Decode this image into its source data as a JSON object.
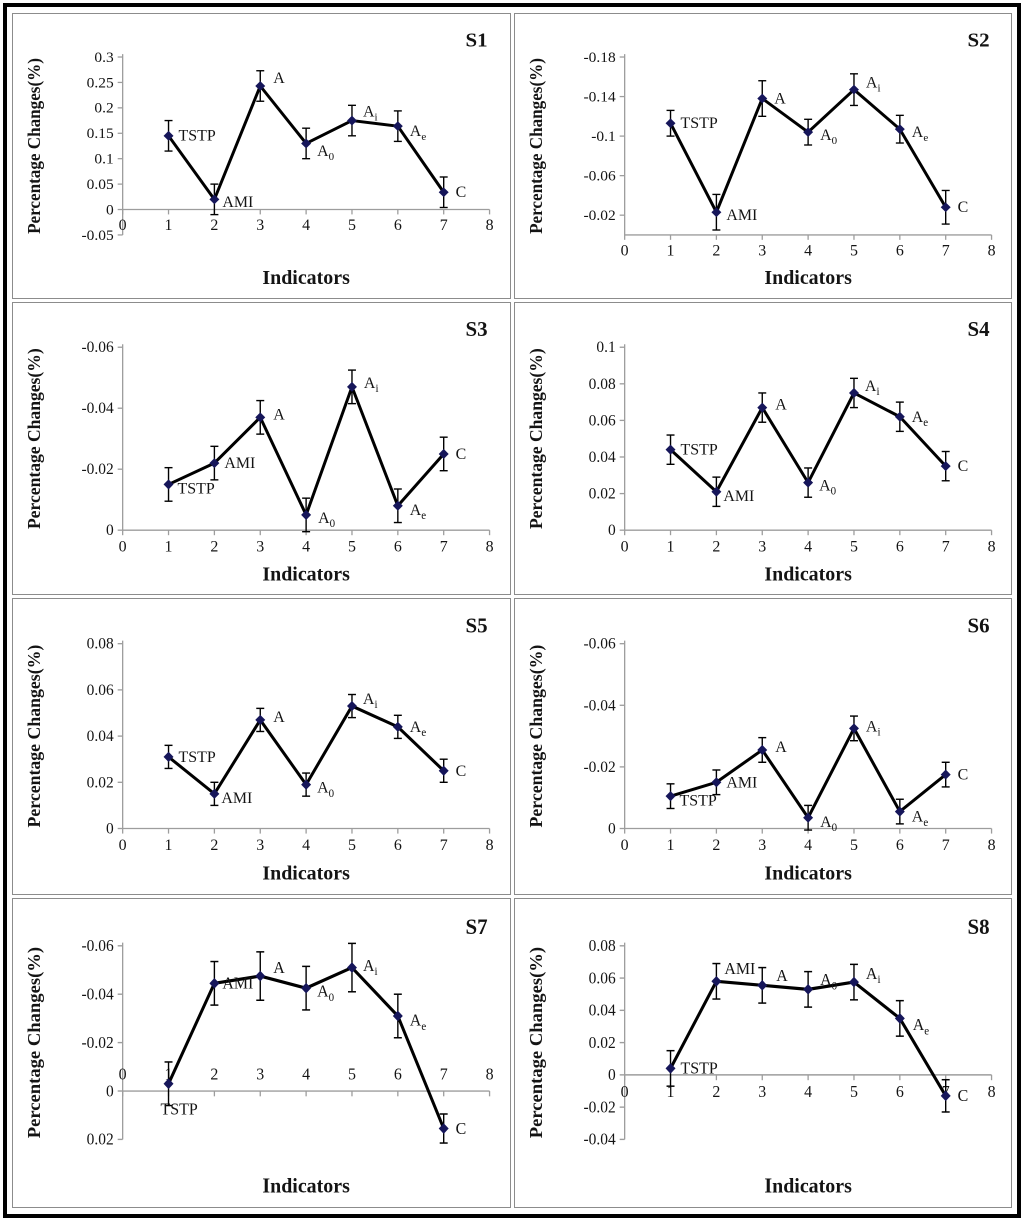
{
  "figure": {
    "ylabel": "Percentage Changes(%)",
    "xlabel": "Indicators",
    "x_tick_labels": [
      "0",
      "1",
      "2",
      "3",
      "4",
      "5",
      "6",
      "7",
      "8"
    ],
    "point_labels": [
      "TSTP",
      "AMI",
      "A",
      "A_0",
      "A_i",
      "A_e",
      "C"
    ],
    "colors": {
      "line": "#000000",
      "marker": "#16165a",
      "axis": "#9d9d9d",
      "text": "#141414",
      "panel_border": "#8c8c8c",
      "frame_border": "#000000"
    }
  },
  "chart_data": [
    {
      "type": "line",
      "title": "S1",
      "ylabel": "Percentage Changes(%)",
      "xlabel": "Indicators",
      "x": [
        1,
        2,
        3,
        4,
        5,
        6,
        7
      ],
      "values": [
        0.145,
        0.02,
        0.243,
        0.13,
        0.175,
        0.164,
        0.034
      ],
      "errors": [
        0.03,
        0.03,
        0.03,
        0.03,
        0.03,
        0.03,
        0.03
      ],
      "y_tick_labels": [
        "0.3",
        "0.25",
        "0.2",
        "0.15",
        "0.1",
        "0.05",
        "0",
        "-0.05"
      ],
      "ylim": [
        0.3,
        -0.05
      ],
      "x_labels_side": "below",
      "label_dx": [
        10,
        8,
        13,
        11,
        11,
        12,
        12
      ],
      "label_dy": [
        0,
        3,
        -8,
        8,
        -9,
        5,
        0
      ]
    },
    {
      "type": "line",
      "title": "S2",
      "ylabel": "Percentage Changes(%)",
      "xlabel": "Indicators",
      "x": [
        1,
        2,
        3,
        4,
        5,
        6,
        7
      ],
      "values": [
        -0.113,
        -0.023,
        -0.138,
        -0.104,
        -0.147,
        -0.107,
        -0.028
      ],
      "errors": [
        0.013,
        0.018,
        0.018,
        0.013,
        0.016,
        0.014,
        0.017
      ],
      "y_tick_labels": [
        "-0.18",
        "-0.14",
        "-0.1",
        "-0.06",
        "-0.02"
      ],
      "ylim": [
        -0.18,
        0
      ],
      "x_labels_side": "below",
      "label_dx": [
        10,
        10,
        12,
        12,
        12,
        12,
        12
      ],
      "label_dy": [
        0,
        3,
        0,
        3,
        -7,
        3,
        0
      ]
    },
    {
      "type": "line",
      "title": "S3",
      "ylabel": "Percentage Changes(%)",
      "xlabel": "Indicators",
      "x": [
        1,
        2,
        3,
        4,
        5,
        6,
        7
      ],
      "values": [
        -0.015,
        -0.022,
        -0.037,
        -0.005,
        -0.047,
        -0.008,
        -0.025
      ],
      "errors": [
        0.0055,
        0.0055,
        0.0055,
        0.0055,
        0.0055,
        0.0055,
        0.0055
      ],
      "y_tick_labels": [
        "-0.06",
        "-0.04",
        "-0.02",
        "0"
      ],
      "ylim": [
        -0.06,
        0
      ],
      "x_labels_side": "below",
      "label_dx": [
        9,
        10,
        13,
        12,
        12,
        12,
        12
      ],
      "label_dy": [
        4,
        0,
        -3,
        3,
        -4,
        4,
        0
      ]
    },
    {
      "type": "line",
      "title": "S4",
      "ylabel": "Percentage Changes(%)",
      "xlabel": "Indicators",
      "x": [
        1,
        2,
        3,
        4,
        5,
        6,
        7
      ],
      "values": [
        0.044,
        0.021,
        0.067,
        0.026,
        0.075,
        0.062,
        0.035
      ],
      "errors": [
        0.008,
        0.008,
        0.008,
        0.008,
        0.008,
        0.008,
        0.008
      ],
      "y_tick_labels": [
        "0.1",
        "0.08",
        "0.06",
        "0.04",
        "0.02",
        "0"
      ],
      "ylim": [
        0.1,
        0
      ],
      "x_labels_side": "below",
      "label_dx": [
        10,
        7,
        13,
        11,
        11,
        12,
        12
      ],
      "label_dy": [
        0,
        4,
        -3,
        3,
        -7,
        0,
        0
      ]
    },
    {
      "type": "line",
      "title": "S5",
      "ylabel": "Percentage Changes(%)",
      "xlabel": "Indicators",
      "x": [
        1,
        2,
        3,
        4,
        5,
        6,
        7
      ],
      "values": [
        0.031,
        0.015,
        0.047,
        0.019,
        0.053,
        0.044,
        0.025
      ],
      "errors": [
        0.005,
        0.005,
        0.005,
        0.005,
        0.005,
        0.005,
        0.005
      ],
      "y_tick_labels": [
        "0.08",
        "0.06",
        "0.04",
        "0.02",
        "0"
      ],
      "ylim": [
        0.08,
        0
      ],
      "x_labels_side": "below",
      "label_dx": [
        10,
        7,
        13,
        11,
        11,
        12,
        12
      ],
      "label_dy": [
        0,
        4,
        -3,
        3,
        -7,
        0,
        0
      ]
    },
    {
      "type": "line",
      "title": "S6",
      "ylabel": "Percentage Changes(%)",
      "xlabel": "Indicators",
      "x": [
        1,
        2,
        3,
        4,
        5,
        6,
        7
      ],
      "values": [
        -0.0105,
        -0.015,
        -0.0255,
        -0.0035,
        -0.0325,
        -0.0055,
        -0.0175
      ],
      "errors": [
        0.004,
        0.004,
        0.004,
        0.004,
        0.004,
        0.004,
        0.004
      ],
      "y_tick_labels": [
        "-0.06",
        "-0.04",
        "-0.02",
        "0"
      ],
      "ylim": [
        -0.06,
        0
      ],
      "x_labels_side": "below",
      "label_dx": [
        9,
        10,
        13,
        12,
        12,
        12,
        12
      ],
      "label_dy": [
        4,
        0,
        -3,
        4,
        -2,
        5,
        0
      ]
    },
    {
      "type": "line",
      "title": "S7",
      "ylabel": "Percentage Changes(%)",
      "xlabel": "Indicators",
      "x": [
        1,
        2,
        3,
        4,
        5,
        6,
        7
      ],
      "values": [
        -0.003,
        -0.0445,
        -0.0475,
        -0.0425,
        -0.051,
        -0.031,
        0.0155
      ],
      "errors": [
        0.009,
        0.009,
        0.01,
        0.009,
        0.01,
        0.009,
        0.006
      ],
      "y_tick_labels": [
        "-0.06",
        "-0.04",
        "-0.02",
        "0",
        "0.02"
      ],
      "ylim": [
        -0.06,
        0.02
      ],
      "x_labels_side": "above",
      "label_dx": [
        -8,
        8,
        13,
        11,
        11,
        12,
        12
      ],
      "label_dy": [
        24,
        0,
        -8,
        3,
        -2,
        4,
        0
      ]
    },
    {
      "type": "line",
      "title": "S8",
      "ylabel": "Percentage Changes(%)",
      "xlabel": "Indicators",
      "x": [
        1,
        2,
        3,
        4,
        5,
        6,
        7
      ],
      "values": [
        0.004,
        0.058,
        0.0555,
        0.053,
        0.0575,
        0.035,
        -0.013
      ],
      "errors": [
        0.011,
        0.011,
        0.011,
        0.011,
        0.011,
        0.011,
        0.01
      ],
      "y_tick_labels": [
        "0.08",
        "0.06",
        "0.04",
        "0.02",
        "0",
        "-0.02",
        "-0.04"
      ],
      "ylim": [
        0.08,
        -0.04
      ],
      "x_labels_side": "below",
      "label_dx": [
        10,
        8,
        14,
        12,
        12,
        13,
        12
      ],
      "label_dy": [
        0,
        -12,
        -9,
        -9,
        -8,
        6,
        0
      ]
    }
  ]
}
